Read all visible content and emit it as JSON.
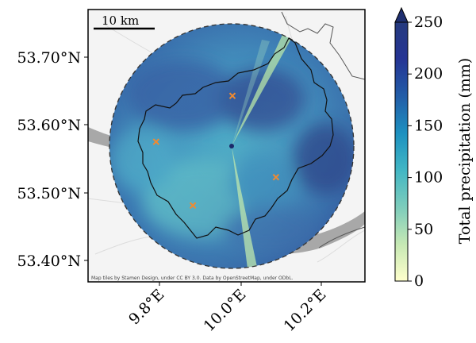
{
  "map": {
    "scale_bar_label": "10 km",
    "attribution": "Map tiles by Stamen Design, under CC BY 3.0. Data by OpenStreetMap, under ODbL.",
    "lat_ticks": [
      "53.70°N",
      "53.60°N",
      "53.50°N",
      "53.40°N"
    ],
    "lon_ticks": [
      "9.8°E",
      "10.0°E",
      "10.2°E"
    ],
    "extent": {
      "lon_min": 9.62,
      "lon_max": 10.32,
      "lat_min": 53.37,
      "lat_max": 53.755
    },
    "radar_center": {
      "lon": 9.975,
      "lat": 53.562
    },
    "markers": [
      {
        "name": "station-1",
        "lon": 9.792,
        "lat": 53.568
      },
      {
        "name": "station-2",
        "lon": 9.985,
        "lat": 53.633
      },
      {
        "name": "station-3",
        "lon": 10.095,
        "lat": 53.518
      },
      {
        "name": "station-4",
        "lon": 9.885,
        "lat": 53.478
      }
    ],
    "colors": {
      "marker": "#f08a30",
      "radar_low": "#5bb6c4",
      "radar_high": "#2c3f8f",
      "boundary": "#111111",
      "water": "#a8a8a8"
    }
  },
  "colorbar": {
    "label": "Total precipitation (mm)",
    "ticks": [
      "0",
      "50",
      "100",
      "150",
      "200",
      "250"
    ],
    "min": 0,
    "max": 250,
    "extend": "max",
    "colormap_stops": [
      "#ffffcc",
      "#c7e9b4",
      "#7fcdbb",
      "#41b6c4",
      "#1d91c0",
      "#225ea8",
      "#253494",
      "#081d58"
    ]
  }
}
